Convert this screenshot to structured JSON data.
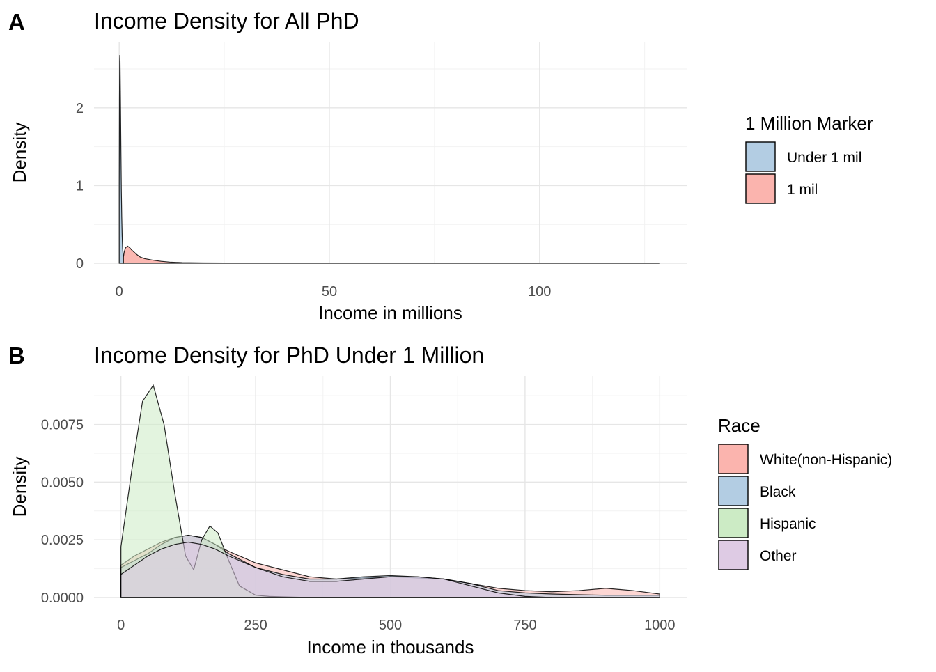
{
  "chart_data": [
    {
      "panel_label": "A",
      "type": "area",
      "title": "Income Density for All PhD",
      "xlabel": "Income in millions",
      "ylabel": "Density",
      "xlim": [
        -6,
        135
      ],
      "ylim": [
        0,
        2.85
      ],
      "xticks": [
        0,
        50,
        100
      ],
      "yticks": [
        0,
        1,
        2
      ],
      "grid": true,
      "legend": {
        "title": "1 Million Marker",
        "position": "right"
      },
      "series": [
        {
          "name": "Under 1 mil",
          "color": "#b3cde3",
          "x": [
            0,
            0.05,
            0.1,
            0.15,
            0.2,
            0.3,
            0.4,
            0.5,
            0.6,
            0.7,
            0.8,
            0.9,
            1.0
          ],
          "y": [
            1.0,
            2.1,
            2.6,
            2.68,
            2.6,
            2.1,
            1.5,
            0.95,
            0.6,
            0.35,
            0.2,
            0.12,
            0.09
          ]
        },
        {
          "name": "1 mil",
          "color": "#fbb4ae",
          "x": [
            1,
            1.2,
            1.5,
            2,
            2.5,
            3,
            4,
            5,
            6,
            7,
            8,
            10,
            12,
            15,
            20,
            25,
            30,
            35,
            40,
            45,
            50,
            55,
            60,
            65,
            70,
            80,
            90,
            100,
            110,
            120,
            128.5
          ],
          "y": [
            0.08,
            0.15,
            0.2,
            0.22,
            0.2,
            0.17,
            0.12,
            0.08,
            0.06,
            0.05,
            0.04,
            0.025,
            0.015,
            0.008,
            0.005,
            0.004,
            0.003,
            0.002,
            0.0015,
            0.001,
            0.002,
            0.001,
            0.0005,
            0.0005,
            0.0003,
            0.0002,
            0.0002,
            0.0001,
            0.0001,
            0.0001,
            0
          ]
        }
      ]
    },
    {
      "panel_label": "B",
      "type": "area",
      "title": "Income Density for PhD Under 1 Million",
      "xlabel": "Income in thousands",
      "ylabel": "Density",
      "xlim": [
        -50,
        1050
      ],
      "ylim": [
        0,
        0.0096
      ],
      "xticks": [
        0,
        250,
        500,
        750,
        1000
      ],
      "yticks": [
        0,
        0.0025,
        0.005,
        0.0075
      ],
      "ytick_labels": [
        "0.0000",
        "0.0025",
        "0.0050",
        "0.0075"
      ],
      "grid": true,
      "legend": {
        "title": "Race",
        "position": "right"
      },
      "series": [
        {
          "name": "White(non-Hispanic)",
          "color": "#fbb4ae",
          "x": [
            0,
            25,
            50,
            75,
            100,
            125,
            150,
            175,
            200,
            250,
            300,
            350,
            400,
            450,
            500,
            550,
            600,
            650,
            700,
            750,
            800,
            850,
            900,
            950,
            1000
          ],
          "y": [
            0.0014,
            0.0018,
            0.0021,
            0.0024,
            0.0026,
            0.0027,
            0.0026,
            0.0023,
            0.002,
            0.0015,
            0.0012,
            0.0009,
            0.0008,
            0.00085,
            0.0009,
            0.00085,
            0.0008,
            0.0006,
            0.0004,
            0.0003,
            0.00025,
            0.0003,
            0.0004,
            0.0003,
            0.00015
          ]
        },
        {
          "name": "Black",
          "color": "#b3cde3",
          "x": [
            0,
            25,
            50,
            75,
            100,
            125,
            150,
            175,
            200,
            250,
            300,
            350,
            400,
            450,
            500,
            550,
            600,
            650,
            700,
            750,
            800,
            850,
            900,
            950,
            1000
          ],
          "y": [
            0.0013,
            0.0016,
            0.0019,
            0.0023,
            0.0026,
            0.0027,
            0.0026,
            0.0023,
            0.0019,
            0.0013,
            0.001,
            0.0008,
            0.0008,
            0.0009,
            0.00095,
            0.0009,
            0.0008,
            0.0006,
            0.0003,
            0.0002,
            0.00015,
            0.00012,
            0.0001,
            0.0001,
            0.0001
          ]
        },
        {
          "name": "Hispanic",
          "color": "#ccebc5",
          "x": [
            0,
            20,
            40,
            60,
            80,
            100,
            120,
            135,
            150,
            165,
            180,
            200,
            220,
            250,
            275,
            300,
            350,
            400,
            450,
            500,
            550,
            600,
            650,
            700,
            800,
            900,
            1000
          ],
          "y": [
            0.0022,
            0.0055,
            0.0085,
            0.0092,
            0.0075,
            0.0045,
            0.0018,
            0.0012,
            0.0025,
            0.0031,
            0.0028,
            0.0016,
            0.0005,
            0.0001,
            5e-05,
            3e-05,
            0,
            0,
            0,
            0,
            0,
            0,
            0,
            0,
            0,
            0,
            0
          ]
        },
        {
          "name": "Other",
          "color": "#decbe4",
          "x": [
            0,
            25,
            50,
            75,
            100,
            125,
            150,
            175,
            200,
            250,
            300,
            350,
            400,
            450,
            500,
            550,
            600,
            650,
            700,
            750,
            800
          ],
          "y": [
            0.001,
            0.0014,
            0.0018,
            0.0021,
            0.0023,
            0.0024,
            0.0023,
            0.0021,
            0.0018,
            0.0013,
            0.0009,
            0.0007,
            0.0007,
            0.0008,
            0.0009,
            0.0009,
            0.0008,
            0.0005,
            0.0002,
            5e-05,
            0
          ]
        }
      ]
    }
  ]
}
